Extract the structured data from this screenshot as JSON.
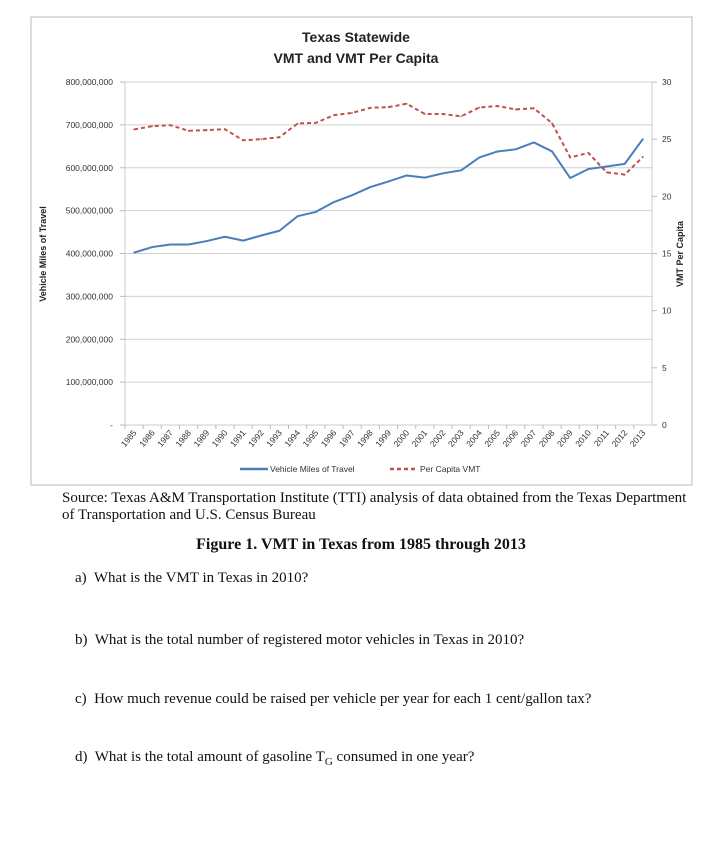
{
  "chart_data": {
    "type": "line",
    "title": [
      "Texas Statewide",
      "VMT and VMT Per Capita"
    ],
    "xlabel": "",
    "ylabel": "Vehicle Miles of Travel",
    "y2label": "VMT Per Capita",
    "categories": [
      "1985",
      "1986",
      "1987",
      "1988",
      "1989",
      "1990",
      "1991",
      "1992",
      "1993",
      "1994",
      "1995",
      "1996",
      "1997",
      "1998",
      "1999",
      "2000",
      "2001",
      "2002",
      "2003",
      "2004",
      "2005",
      "2006",
      "2007",
      "2008",
      "2009",
      "2010",
      "2011",
      "2012",
      "2013"
    ],
    "ylim": [
      0,
      800000000
    ],
    "y_ticks": [
      "-",
      "100,000,000",
      "200,000,000",
      "300,000,000",
      "400,000,000",
      "500,000,000",
      "600,000,000",
      "700,000,000",
      "800,000,000"
    ],
    "y2lim": [
      0,
      30
    ],
    "y2_ticks": [
      "0",
      "5",
      "10",
      "15",
      "20",
      "25",
      "30"
    ],
    "grid": true,
    "legend": "bottom",
    "series": [
      {
        "name": "Vehicle Miles of Travel",
        "axis": "left",
        "color": "#4a7ebb",
        "style": "solid",
        "values": [
          402000000,
          415000000,
          421000000,
          421000000,
          429000000,
          439000000,
          430000000,
          442000000,
          453000000,
          487000000,
          497000000,
          520000000,
          536000000,
          555000000,
          568000000,
          582000000,
          577000000,
          587000000,
          594000000,
          624000000,
          638000000,
          643000000,
          659000000,
          638000000,
          576000000,
          597000000,
          603000000,
          609000000,
          667000000
        ]
      },
      {
        "name": "Per Capita VMT",
        "axis": "right",
        "color": "#c0504d",
        "style": "dashed",
        "values": [
          25.85,
          26.14,
          26.22,
          25.73,
          25.79,
          25.87,
          24.9,
          25.0,
          25.17,
          26.37,
          26.43,
          27.1,
          27.3,
          27.74,
          27.8,
          28.1,
          27.2,
          27.2,
          27.0,
          27.77,
          27.9,
          27.6,
          27.7,
          26.4,
          23.4,
          23.8,
          22.1,
          21.9,
          23.45
        ]
      }
    ]
  },
  "source": "Source: Texas A&M Transportation Institute (TTI) analysis of data obtained from the Texas Department of Transportation and U.S. Census Bureau",
  "figure_caption": "Figure 1. VMT in Texas from 1985 through 2013",
  "questions": [
    {
      "label": "a)",
      "text": "What is the VMT in Texas in 2010?"
    },
    {
      "label": "b)",
      "text": "What is the total number of registered motor vehicles in Texas in 2010?"
    },
    {
      "label": "c)",
      "text": "How much revenue could be raised per vehicle per year for each 1 cent/gallon tax?"
    },
    {
      "label": "d)",
      "text_before": "What is the total amount of gasoline T",
      "subscript": "G",
      "text_after": " consumed in one year?"
    }
  ]
}
